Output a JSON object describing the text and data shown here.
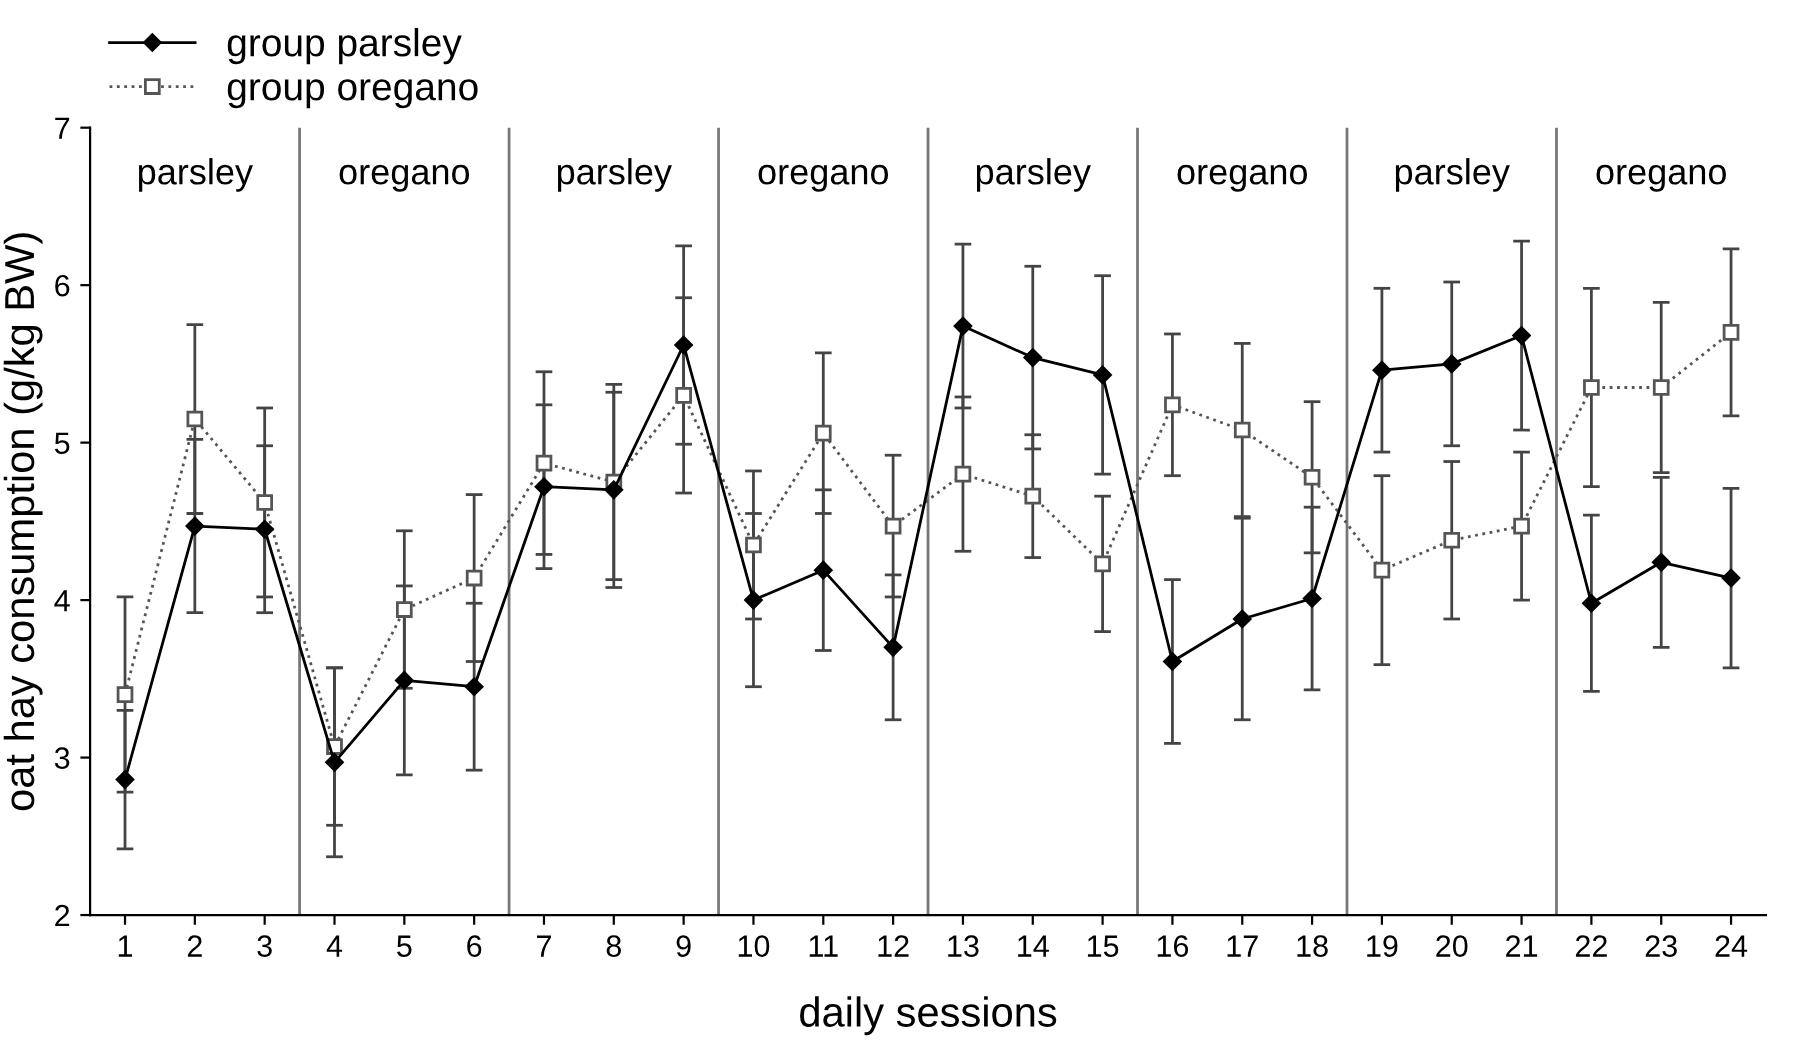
{
  "chart_data": {
    "type": "line",
    "xlabel": "daily sessions",
    "ylabel": "oat hay consumption (g/kg BW)",
    "x": [
      1,
      2,
      3,
      4,
      5,
      6,
      7,
      8,
      9,
      10,
      11,
      12,
      13,
      14,
      15,
      16,
      17,
      18,
      19,
      20,
      21,
      22,
      23,
      24
    ],
    "xlim": [
      0.5,
      24.5
    ],
    "xticks": [
      1,
      2,
      3,
      4,
      5,
      6,
      7,
      8,
      9,
      10,
      11,
      12,
      13,
      14,
      15,
      16,
      17,
      18,
      19,
      20,
      21,
      22,
      23,
      24
    ],
    "ylim": [
      2,
      7
    ],
    "yticks": [
      2,
      3,
      4,
      5,
      6,
      7
    ],
    "grid": false,
    "legend": "top left",
    "series": [
      {
        "name": "group parsley",
        "color": "#000000",
        "marker": "diamond",
        "line_style": "solid",
        "values": [
          2.86,
          4.47,
          4.45,
          2.97,
          3.49,
          3.45,
          4.72,
          4.7,
          5.62,
          4.0,
          4.19,
          3.7,
          5.74,
          5.54,
          5.43,
          3.61,
          3.88,
          4.01,
          5.46,
          5.5,
          5.68,
          3.98,
          4.24,
          4.14
        ],
        "errors": [
          0.44,
          0.55,
          0.53,
          0.6,
          0.6,
          0.53,
          0.52,
          0.62,
          0.63,
          0.55,
          0.51,
          0.46,
          0.52,
          0.58,
          0.63,
          0.52,
          0.64,
          0.58,
          0.52,
          0.52,
          0.6,
          0.56,
          0.54,
          0.57
        ]
      },
      {
        "name": "group oregano",
        "color": "#555555",
        "marker": "square",
        "line_style": "dotted",
        "values": [
          3.4,
          5.15,
          4.62,
          3.07,
          3.94,
          4.14,
          4.87,
          4.75,
          5.3,
          4.35,
          5.06,
          4.47,
          4.8,
          4.66,
          4.23,
          5.24,
          5.08,
          4.78,
          4.19,
          4.38,
          4.47,
          5.35,
          5.35,
          5.7
        ],
        "errors": [
          0.62,
          0.6,
          0.6,
          0.5,
          0.5,
          0.53,
          0.58,
          0.62,
          0.62,
          0.47,
          0.51,
          0.45,
          0.49,
          0.39,
          0.43,
          0.45,
          0.55,
          0.48,
          0.6,
          0.5,
          0.47,
          0.63,
          0.54,
          0.53
        ]
      }
    ],
    "ref_lines": [
      {
        "axis": "x",
        "value": 3.5,
        "color": "#777777"
      },
      {
        "axis": "x",
        "value": 6.5,
        "color": "#777777"
      },
      {
        "axis": "x",
        "value": 9.5,
        "color": "#777777"
      },
      {
        "axis": "x",
        "value": 12.5,
        "color": "#777777"
      },
      {
        "axis": "x",
        "value": 15.5,
        "color": "#777777"
      },
      {
        "axis": "x",
        "value": 18.5,
        "color": "#777777"
      },
      {
        "axis": "x",
        "value": 21.5,
        "color": "#777777"
      }
    ],
    "annotations": [
      "parsley",
      "oregano",
      "parsley",
      "oregano",
      "parsley",
      "oregano",
      "parsley",
      "oregano"
    ]
  }
}
